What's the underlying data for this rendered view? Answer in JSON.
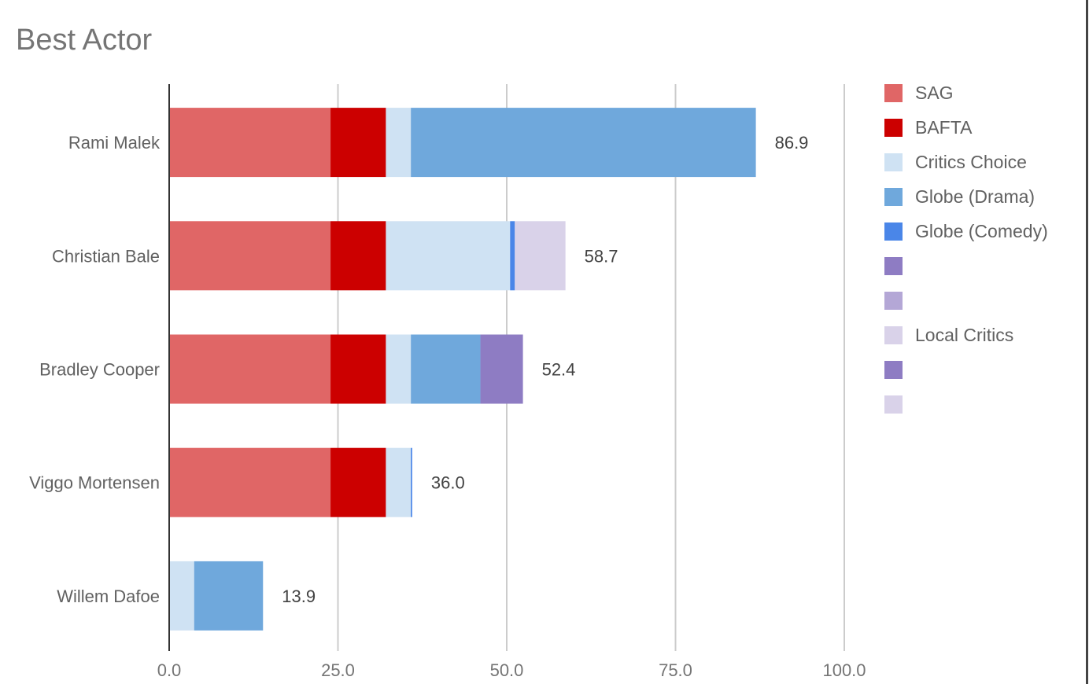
{
  "chart_data": {
    "type": "bar",
    "orientation": "horizontal",
    "stacked": true,
    "title": "Best Actor",
    "xlabel": "",
    "ylabel": "",
    "xlim": [
      0,
      100
    ],
    "ticks": [
      "0.0",
      "25.0",
      "50.0",
      "75.0",
      "100.0"
    ],
    "tick_values": [
      0,
      25,
      50,
      75,
      100
    ],
    "grid": true,
    "legend_position": "right",
    "categories": [
      "Rami Malek",
      "Christian Bale",
      "Bradley Cooper",
      "Viggo Mortensen",
      "Willem Dafoe"
    ],
    "totals": [
      "86.9",
      "58.7",
      "52.4",
      "36.0",
      "13.9"
    ],
    "series": [
      {
        "name": "SAG",
        "color": "#e06666",
        "values": [
          23.9,
          23.9,
          23.9,
          23.9,
          0
        ]
      },
      {
        "name": "BAFTA",
        "color": "#cc0000",
        "values": [
          8.2,
          8.2,
          8.2,
          8.2,
          0
        ]
      },
      {
        "name": "Critics Choice",
        "color": "#cfe2f3",
        "values": [
          3.7,
          18.4,
          3.7,
          3.7,
          3.7
        ]
      },
      {
        "name": "Globe (Drama)",
        "color": "#6fa8dc",
        "values": [
          51.1,
          0,
          10.3,
          0,
          10.2
        ]
      },
      {
        "name": "Globe (Comedy)",
        "color": "#4a86e8",
        "values": [
          0,
          0.7,
          0,
          0.2,
          0
        ]
      },
      {
        "name": "",
        "color": "#8e7cc3",
        "values": [
          0,
          0,
          6.3,
          0,
          0
        ]
      },
      {
        "name": "",
        "color": "#b4a7d6",
        "values": [
          0,
          0,
          0,
          0,
          0
        ]
      },
      {
        "name": "Local Critics",
        "color": "#d9d2e9",
        "values": [
          0,
          7.5,
          0,
          0,
          0
        ]
      },
      {
        "name": "",
        "color": "#8e7cc3",
        "values": [
          0,
          0,
          0,
          0,
          0
        ]
      },
      {
        "name": "",
        "color": "#d9d2e9",
        "values": [
          0,
          0,
          0,
          0,
          0
        ]
      }
    ]
  }
}
